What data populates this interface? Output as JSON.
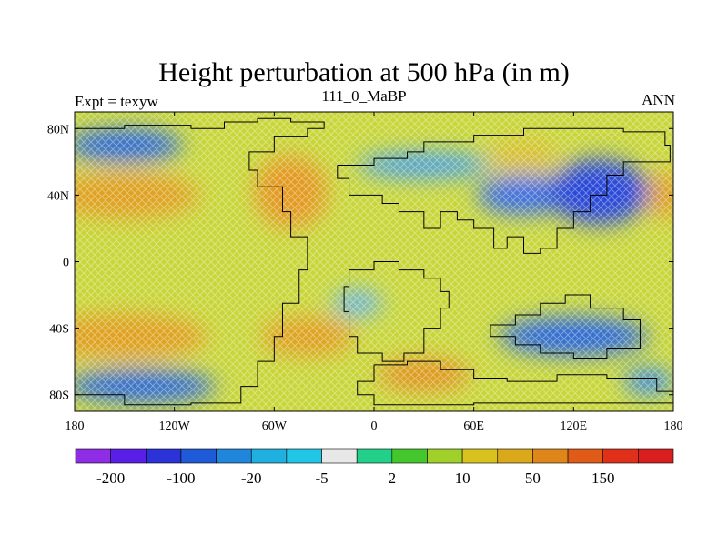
{
  "title": "Height perturbation at 500 hPa (in m)",
  "left_string": "Expt = texyw",
  "center_string": "111_0_MaBP",
  "right_string": "ANN",
  "map": {
    "lon_range": [
      -180,
      180
    ],
    "lat_range": [
      -90,
      90
    ],
    "lon_ticks": [
      {
        "value": -180,
        "label": "180"
      },
      {
        "value": -120,
        "label": "120W"
      },
      {
        "value": -60,
        "label": "60W"
      },
      {
        "value": 0,
        "label": "0"
      },
      {
        "value": 60,
        "label": "60E"
      },
      {
        "value": 120,
        "label": "120E"
      },
      {
        "value": 180,
        "label": "180"
      }
    ],
    "lat_ticks": [
      {
        "value": 80,
        "label": "80N"
      },
      {
        "value": 40,
        "label": "40N"
      },
      {
        "value": 0,
        "label": "0"
      },
      {
        "value": -40,
        "label": "40S"
      },
      {
        "value": -80,
        "label": "80S"
      }
    ],
    "continent_outline_color": "#000000"
  },
  "colorbar": {
    "colors": [
      "#8f2de6",
      "#5a1fe6",
      "#2a32d8",
      "#1f5ad8",
      "#1f86dc",
      "#1fb0e0",
      "#21c6e6",
      "#e8e8e8",
      "#22d08a",
      "#44c72c",
      "#9fd12a",
      "#d7c21e",
      "#dba81a",
      "#df861a",
      "#e05a18",
      "#e0301a",
      "#d81e1e"
    ],
    "labels": [
      {
        "after_box": 1,
        "text": "-200"
      },
      {
        "after_box": 3,
        "text": "-100"
      },
      {
        "after_box": 5,
        "text": "-20"
      },
      {
        "after_box": 7,
        "text": "-5"
      },
      {
        "after_box": 9,
        "text": "2"
      },
      {
        "after_box": 11,
        "text": "10"
      },
      {
        "after_box": 13,
        "text": "50"
      },
      {
        "after_box": 15,
        "text": "150"
      }
    ]
  }
}
